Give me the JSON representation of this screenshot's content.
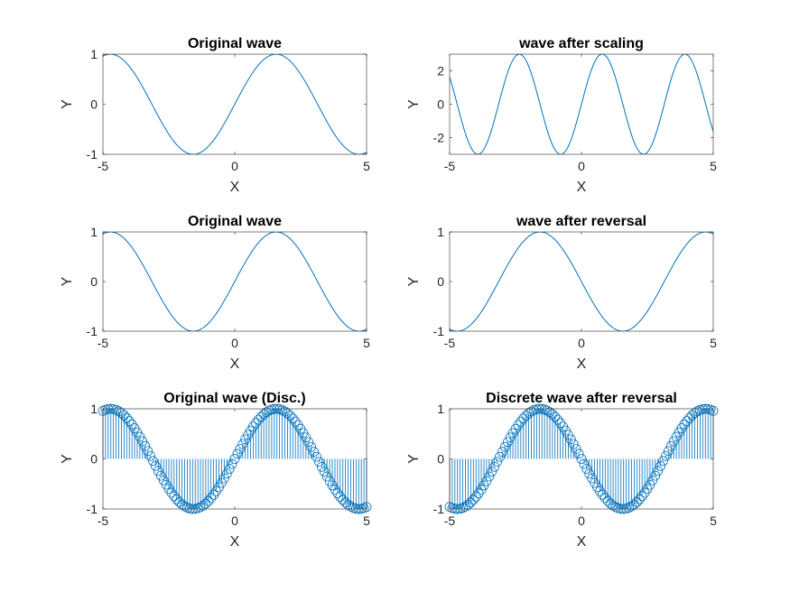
{
  "figure": {
    "line_color": "#0072BD",
    "axes_color": "#262626",
    "background": "#FFFFFF"
  },
  "chart_data": [
    {
      "type": "line",
      "title": "Original wave",
      "xlabel": "X",
      "ylabel": "Y",
      "xlim": [
        -5,
        5
      ],
      "ylim": [
        -1,
        1
      ],
      "xticks": [
        -5,
        0,
        5
      ],
      "yticks": [
        -1,
        0,
        1
      ],
      "function": "y = sin(x)",
      "x_range": [
        -5,
        5
      ],
      "grid": false
    },
    {
      "type": "line",
      "title": "wave after scaling",
      "xlabel": "X",
      "ylabel": "Y",
      "xlim": [
        -5,
        5
      ],
      "ylim": [
        -3,
        3
      ],
      "xticks": [
        -5,
        0,
        5
      ],
      "yticks": [
        -2,
        0,
        2
      ],
      "function": "y = 3*sin(2*x)",
      "x_range": [
        -5,
        5
      ],
      "grid": false
    },
    {
      "type": "line",
      "title": "Original wave",
      "xlabel": "X",
      "ylabel": "Y",
      "xlim": [
        -5,
        5
      ],
      "ylim": [
        -1,
        1
      ],
      "xticks": [
        -5,
        0,
        5
      ],
      "yticks": [
        -1,
        0,
        1
      ],
      "function": "y = sin(x)",
      "x_range": [
        -5,
        5
      ],
      "grid": false
    },
    {
      "type": "line",
      "title": "wave after reversal",
      "xlabel": "X",
      "ylabel": "Y",
      "xlim": [
        -5,
        5
      ],
      "ylim": [
        -1,
        1
      ],
      "xticks": [
        -5,
        0,
        5
      ],
      "yticks": [
        -1,
        0,
        1
      ],
      "function": "y = sin(-x)",
      "x_range": [
        -5,
        5
      ],
      "grid": false
    },
    {
      "type": "stem",
      "title": "Original wave (Disc.)",
      "xlabel": "X",
      "ylabel": "Y",
      "xlim": [
        -5,
        5
      ],
      "ylim": [
        -1,
        1
      ],
      "xticks": [
        -5,
        0,
        5
      ],
      "yticks": [
        -1,
        0,
        1
      ],
      "function": "y = sin(x)",
      "x_range": [
        -5,
        5
      ],
      "sample_step": 0.1,
      "marker": "circle",
      "grid": false
    },
    {
      "type": "stem",
      "title": "Discrete wave after reversal",
      "xlabel": "X",
      "ylabel": "Y",
      "xlim": [
        -5,
        5
      ],
      "ylim": [
        -1,
        1
      ],
      "xticks": [
        -5,
        0,
        5
      ],
      "yticks": [
        -1,
        0,
        1
      ],
      "function": "y = sin(-x)",
      "x_range": [
        -5,
        5
      ],
      "sample_step": 0.1,
      "marker": "circle",
      "grid": false
    }
  ]
}
